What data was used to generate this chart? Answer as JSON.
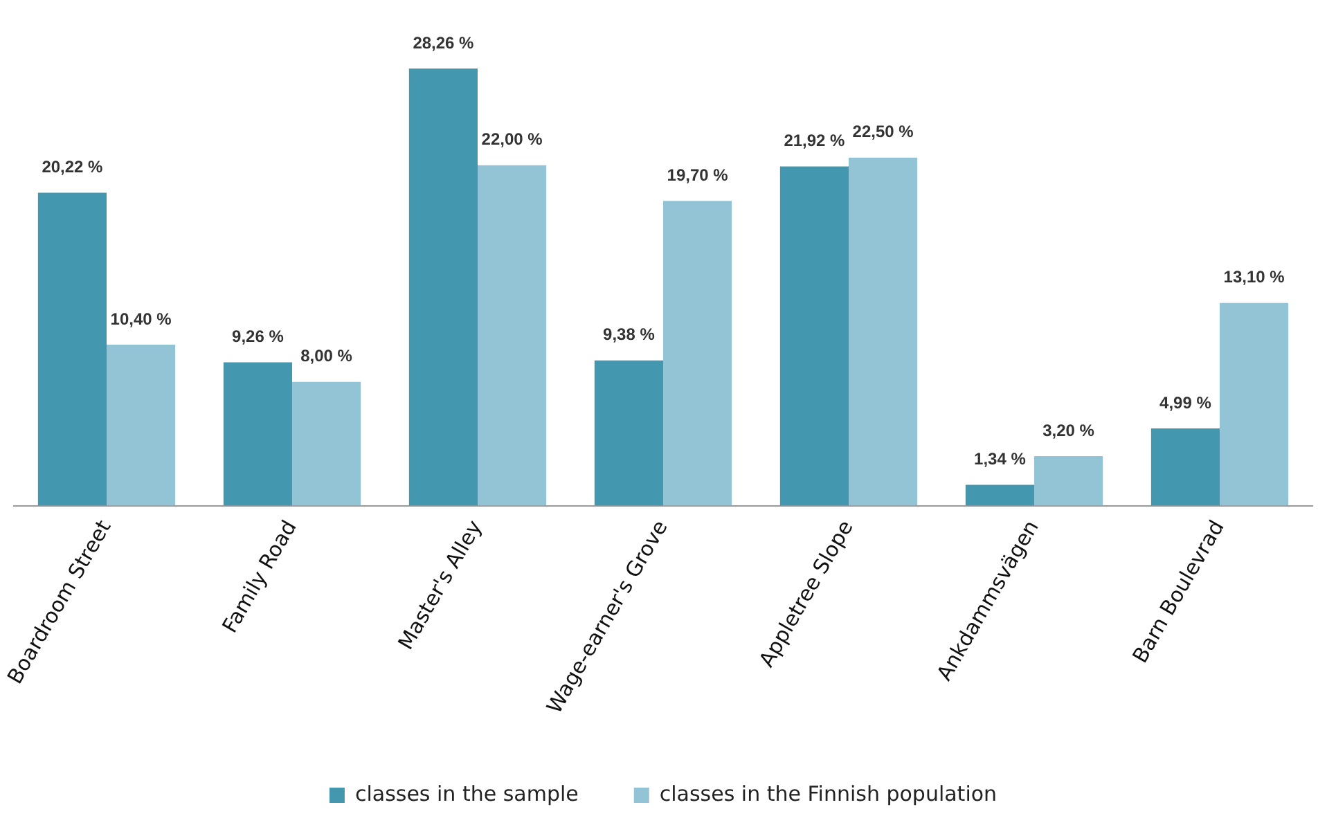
{
  "chart_data": {
    "type": "bar",
    "categories": [
      "Boardroom Street",
      "Family Road",
      "Master's Alley",
      "Wage-earner's Grove",
      "Appletree Slope",
      "Ankdammsvägen",
      "Barn Boulevrad"
    ],
    "series": [
      {
        "name": "classes in the sample",
        "color": "#4397ae",
        "values": [
          20.22,
          9.26,
          28.26,
          9.38,
          21.92,
          1.34,
          4.99
        ],
        "value_labels": [
          "20,22 %",
          "9,26 %",
          "28,26 %",
          "9,38 %",
          "21,92 %",
          "1,34 %",
          "4,99 %"
        ]
      },
      {
        "name": "classes in the Finnish population",
        "color": "#93c4d6",
        "values": [
          10.4,
          8.0,
          22.0,
          19.7,
          22.5,
          3.2,
          13.1
        ],
        "value_labels": [
          "10,40 %",
          "8,00 %",
          "22,00 %",
          "19,70 %",
          "22,50 %",
          "3,20 %",
          "13,10 %"
        ]
      }
    ],
    "grid": false,
    "legend": "bottom"
  }
}
